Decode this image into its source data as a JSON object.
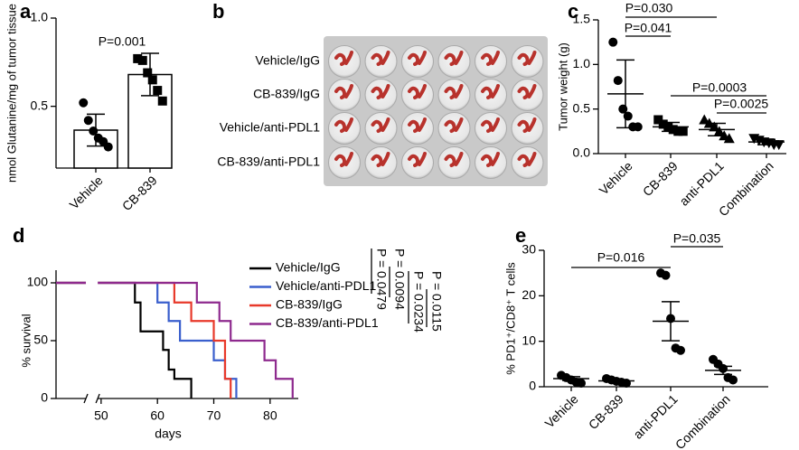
{
  "chart_data": [
    {
      "panel": "a",
      "type": "bar",
      "y_label": "nmol Glutanine/mg of tumor tissue",
      "categories": [
        "Vehicle",
        "CB-839"
      ],
      "values": [
        0.365,
        0.68
      ],
      "errors": [
        0.09,
        0.12
      ],
      "points": [
        [
          0.52,
          0.42,
          0.36,
          0.32,
          0.3,
          0.27
        ],
        [
          0.77,
          0.76,
          0.69,
          0.65,
          0.59,
          0.53
        ]
      ],
      "markers": [
        "circle",
        "square"
      ],
      "color": "#000000",
      "ylim": [
        0.15,
        1.0
      ],
      "yticks": [
        0.5,
        {
          "value": 1.0,
          "label": "1.0"
        }
      ],
      "annotations": [
        "P=0.001"
      ]
    },
    {
      "panel": "c",
      "type": "dot",
      "y_label": "Tumor weight (g)",
      "categories": [
        "Vehicle",
        "CB-839",
        "anti-PDL1",
        "Combination"
      ],
      "values": [
        0.67,
        0.3,
        0.27,
        0.13
      ],
      "errors": [
        0.38,
        0.05,
        0.07,
        0.03
      ],
      "points": [
        [
          1.25,
          0.82,
          0.5,
          0.42,
          0.3,
          0.3
        ],
        [
          0.38,
          0.33,
          0.3,
          0.27,
          0.25,
          0.25
        ],
        [
          0.38,
          0.34,
          0.3,
          0.25,
          0.2,
          0.17
        ],
        [
          0.17,
          0.15,
          0.13,
          0.12,
          0.1,
          0.1
        ]
      ],
      "markers": [
        "circle",
        "square",
        "triangle",
        "triangle-down"
      ],
      "color": "#000000",
      "ylim": [
        0,
        1.5
      ],
      "yticks": [
        {
          "value": 0,
          "label": "0.0"
        },
        0.5,
        {
          "value": 1.0,
          "label": "1.0"
        },
        1.5
      ],
      "annotations": [
        "P=0.030",
        "P=0.041",
        "P=0.0003",
        "P=0.0025"
      ]
    },
    {
      "panel": "d",
      "type": "line",
      "y_label": "% survival",
      "x_label": "days",
      "xlim": [
        42,
        85
      ],
      "xticks": [
        50,
        60,
        70,
        80
      ],
      "ylim": [
        0,
        100
      ],
      "yticks": [
        0,
        50,
        100
      ],
      "series": [
        {
          "name": "Vehicle/IgG",
          "color": "#000000",
          "x": [
            42,
            56,
            56,
            57,
            57,
            61,
            61,
            62,
            62,
            63,
            63,
            66,
            66
          ],
          "values": [
            100,
            100,
            83,
            83,
            58,
            58,
            42,
            42,
            25,
            25,
            17,
            17,
            0
          ]
        },
        {
          "name": "Vehicle/anti-PDL1",
          "color": "#3a5fcd",
          "x": [
            42,
            60,
            60,
            62,
            62,
            64,
            64,
            70,
            70,
            72,
            72,
            74,
            74
          ],
          "values": [
            100,
            100,
            83,
            83,
            67,
            67,
            50,
            50,
            33,
            33,
            17,
            17,
            0
          ]
        },
        {
          "name": "CB-839/IgG",
          "color": "#e8392a",
          "x": [
            42,
            63,
            63,
            66,
            66,
            70,
            70,
            72,
            72,
            73,
            73
          ],
          "values": [
            100,
            100,
            83,
            83,
            67,
            67,
            50,
            50,
            17,
            17,
            0
          ]
        },
        {
          "name": "CB-839/anti-PDL1",
          "color": "#8e2a8e",
          "x": [
            42,
            67,
            67,
            71,
            71,
            73,
            73,
            79,
            79,
            81,
            81,
            84,
            84
          ],
          "values": [
            100,
            100,
            83,
            83,
            67,
            67,
            50,
            50,
            33,
            33,
            17,
            17,
            0
          ]
        }
      ],
      "annotations": [
        "P = 0.0479",
        "P = 0.0094",
        "P = 0.0234",
        "P = 0.0115"
      ]
    },
    {
      "panel": "e",
      "type": "dot",
      "y_label": "% PD1⁺/CD8⁺ T cells",
      "categories": [
        "Vehicle",
        "CB-839",
        "anti-PDL1",
        "Combination"
      ],
      "values": [
        1.8,
        1.3,
        14.4,
        3.6
      ],
      "errors": [
        0.4,
        0.2,
        4.3,
        0.9
      ],
      "points": [
        [
          2.5,
          2,
          1.5,
          1,
          0.8
        ],
        [
          1.8,
          1.5,
          1.2,
          1,
          0.8
        ],
        [
          25,
          24.5,
          15,
          8.5,
          8
        ],
        [
          6,
          5,
          4,
          2,
          1.5
        ]
      ],
      "markers": [
        "circle",
        "circle",
        "circle",
        "circle"
      ],
      "color": "#000000",
      "ylim": [
        0,
        30
      ],
      "yticks": [
        0,
        10,
        20,
        30
      ],
      "annotations": [
        "P=0.016",
        "P=0.035"
      ]
    }
  ],
  "photo_panel": {
    "panel": "b",
    "rows": [
      "Vehicle/IgG",
      "CB-839/IgG",
      "Vehicle/anti-PDL1",
      "CB-839/anti-PDL1"
    ]
  }
}
